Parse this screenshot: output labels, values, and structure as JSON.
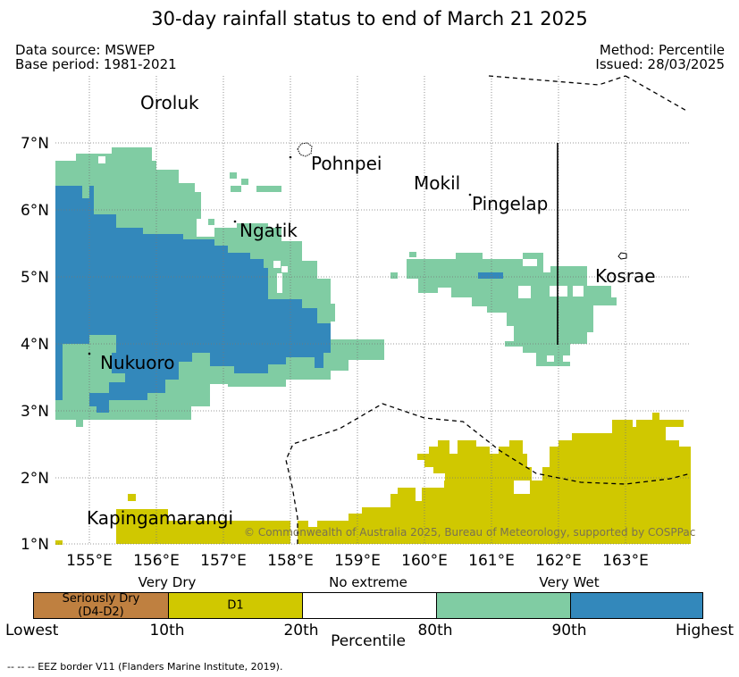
{
  "title": "30-day rainfall status to end of March 21 2025",
  "meta": {
    "data_source": "Data source: MSWEP",
    "base_period": "Base period: 1981-2021",
    "method": "Method: Percentile",
    "issued": "Issued: 28/03/2025"
  },
  "map": {
    "lon_ticks": [
      "155°E",
      "156°E",
      "157°E",
      "158°E",
      "159°E",
      "160°E",
      "161°E",
      "162°E",
      "163°E"
    ],
    "lat_ticks": [
      "1°N",
      "2°N",
      "3°N",
      "4°N",
      "5°N",
      "6°N",
      "7°N"
    ],
    "places": [
      "Oroluk",
      "Pohnpei",
      "Mokil",
      "Pingelap",
      "Ngatik",
      "Kosrae",
      "Nukuoro",
      "Kapingamarangi"
    ],
    "copyright": "© Commonwealth of Australia 2025, Bureau of Meteorology, supported by COSPPac",
    "colors": {
      "seriously_dry": "#bf8040",
      "d1": "#d0c800",
      "no_extreme": "#ffffff",
      "very_wet_80_90": "#80cca3",
      "very_wet_90_high": "#3388bb"
    }
  },
  "legend": {
    "categories": [
      "Very Dry",
      "No extreme",
      "Very Wet"
    ],
    "segments": [
      "Seriously Dry\n(D4-D2)",
      "D1"
    ],
    "bounds": [
      "Lowest",
      "10th",
      "20th",
      "80th",
      "90th",
      "Highest"
    ],
    "axis_label": "Percentile"
  },
  "footnote": "--  --  -- EEZ border V11 (Flanders Marine Institute, 2019)."
}
